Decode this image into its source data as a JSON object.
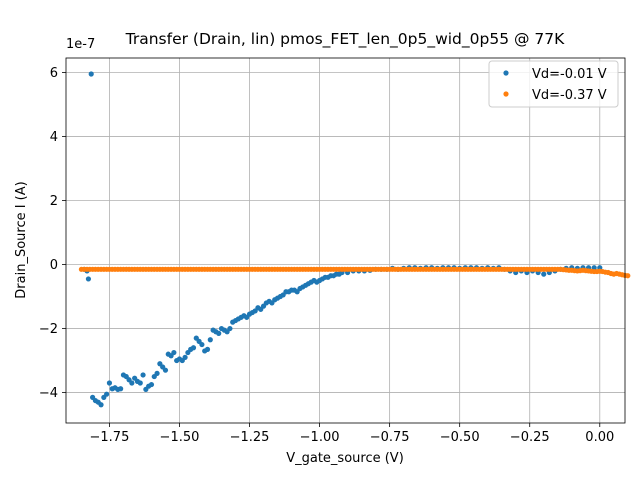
{
  "chart_data": {
    "type": "scatter",
    "title": "Transfer (Drain, lin) pmos_FET_len_0p5_wid_0p55 @ 77K",
    "xlabel": "V_gate_source (V)",
    "ylabel": "Drain_Source I (A)",
    "y_offset_label": "1e-7",
    "y_scale": 1e-07,
    "xlim": [
      -1.905,
      0.09
    ],
    "ylim": [
      -4.95,
      6.45
    ],
    "x_ticks": [
      -1.75,
      -1.5,
      -1.25,
      -1.0,
      -0.75,
      -0.5,
      -0.25,
      0.0
    ],
    "x_tick_labels": [
      "−1.75",
      "−1.50",
      "−1.25",
      "−1.00",
      "−0.75",
      "−0.50",
      "−0.25",
      "0.00"
    ],
    "y_ticks": [
      -4,
      -2,
      0,
      2,
      4,
      6
    ],
    "y_tick_labels": [
      "−4",
      "−2",
      "0",
      "2",
      "4",
      "6"
    ],
    "grid": true,
    "legend_position": "top-right",
    "series": [
      {
        "name": "Vd=-0.01 V",
        "color": "#1f77b4",
        "points": [
          [
            -1.84,
            -0.15
          ],
          [
            -1.83,
            -0.2
          ],
          [
            -1.825,
            -0.45
          ],
          [
            -1.815,
            5.95
          ],
          [
            -1.81,
            -4.15
          ],
          [
            -1.8,
            -4.25
          ],
          [
            -1.79,
            -4.3
          ],
          [
            -1.78,
            -4.38
          ],
          [
            -1.77,
            -4.15
          ],
          [
            -1.76,
            -4.05
          ],
          [
            -1.75,
            -3.7
          ],
          [
            -1.74,
            -3.88
          ],
          [
            -1.73,
            -3.85
          ],
          [
            -1.72,
            -3.9
          ],
          [
            -1.71,
            -3.88
          ],
          [
            -1.7,
            -3.45
          ],
          [
            -1.69,
            -3.5
          ],
          [
            -1.68,
            -3.6
          ],
          [
            -1.67,
            -3.7
          ],
          [
            -1.66,
            -3.55
          ],
          [
            -1.65,
            -3.65
          ],
          [
            -1.64,
            -3.7
          ],
          [
            -1.63,
            -3.45
          ],
          [
            -1.62,
            -3.9
          ],
          [
            -1.61,
            -3.8
          ],
          [
            -1.6,
            -3.75
          ],
          [
            -1.59,
            -3.5
          ],
          [
            -1.58,
            -3.4
          ],
          [
            -1.57,
            -3.1
          ],
          [
            -1.56,
            -3.2
          ],
          [
            -1.55,
            -3.3
          ],
          [
            -1.54,
            -2.8
          ],
          [
            -1.53,
            -2.85
          ],
          [
            -1.52,
            -2.75
          ],
          [
            -1.51,
            -3.0
          ],
          [
            -1.5,
            -2.95
          ],
          [
            -1.49,
            -3.0
          ],
          [
            -1.48,
            -2.9
          ],
          [
            -1.47,
            -2.75
          ],
          [
            -1.46,
            -2.65
          ],
          [
            -1.45,
            -2.6
          ],
          [
            -1.44,
            -2.3
          ],
          [
            -1.43,
            -2.4
          ],
          [
            -1.42,
            -2.5
          ],
          [
            -1.41,
            -2.7
          ],
          [
            -1.4,
            -2.65
          ],
          [
            -1.39,
            -2.35
          ],
          [
            -1.38,
            -2.05
          ],
          [
            -1.37,
            -2.1
          ],
          [
            -1.36,
            -2.15
          ],
          [
            -1.35,
            -2.0
          ],
          [
            -1.34,
            -2.05
          ],
          [
            -1.33,
            -2.1
          ],
          [
            -1.32,
            -2.0
          ],
          [
            -1.31,
            -1.8
          ],
          [
            -1.3,
            -1.75
          ],
          [
            -1.29,
            -1.7
          ],
          [
            -1.28,
            -1.65
          ],
          [
            -1.27,
            -1.6
          ],
          [
            -1.26,
            -1.65
          ],
          [
            -1.25,
            -1.55
          ],
          [
            -1.24,
            -1.5
          ],
          [
            -1.23,
            -1.45
          ],
          [
            -1.22,
            -1.35
          ],
          [
            -1.21,
            -1.4
          ],
          [
            -1.2,
            -1.3
          ],
          [
            -1.19,
            -1.2
          ],
          [
            -1.18,
            -1.15
          ],
          [
            -1.17,
            -1.2
          ],
          [
            -1.16,
            -1.1
          ],
          [
            -1.15,
            -1.05
          ],
          [
            -1.14,
            -1.0
          ],
          [
            -1.13,
            -0.95
          ],
          [
            -1.12,
            -0.85
          ],
          [
            -1.11,
            -0.85
          ],
          [
            -1.1,
            -0.8
          ],
          [
            -1.09,
            -0.8
          ],
          [
            -1.08,
            -0.85
          ],
          [
            -1.07,
            -0.75
          ],
          [
            -1.06,
            -0.7
          ],
          [
            -1.05,
            -0.65
          ],
          [
            -1.04,
            -0.6
          ],
          [
            -1.03,
            -0.55
          ],
          [
            -1.02,
            -0.5
          ],
          [
            -1.01,
            -0.55
          ],
          [
            -1.0,
            -0.5
          ],
          [
            -0.99,
            -0.45
          ],
          [
            -0.98,
            -0.4
          ],
          [
            -0.97,
            -0.4
          ],
          [
            -0.96,
            -0.35
          ],
          [
            -0.95,
            -0.35
          ],
          [
            -0.94,
            -0.3
          ],
          [
            -0.93,
            -0.3
          ],
          [
            -0.92,
            -0.25
          ],
          [
            -0.9,
            -0.25
          ],
          [
            -0.88,
            -0.2
          ],
          [
            -0.86,
            -0.2
          ],
          [
            -0.84,
            -0.2
          ],
          [
            -0.82,
            -0.18
          ],
          [
            -0.8,
            -0.15
          ],
          [
            -0.78,
            -0.15
          ],
          [
            -0.76,
            -0.15
          ],
          [
            -0.74,
            -0.12
          ],
          [
            -0.72,
            -0.15
          ],
          [
            -0.7,
            -0.12
          ],
          [
            -0.68,
            -0.1
          ],
          [
            -0.66,
            -0.1
          ],
          [
            -0.64,
            -0.12
          ],
          [
            -0.62,
            -0.1
          ],
          [
            -0.6,
            -0.1
          ],
          [
            -0.58,
            -0.12
          ],
          [
            -0.56,
            -0.1
          ],
          [
            -0.54,
            -0.1
          ],
          [
            -0.52,
            -0.1
          ],
          [
            -0.5,
            -0.12
          ],
          [
            -0.48,
            -0.1
          ],
          [
            -0.46,
            -0.1
          ],
          [
            -0.44,
            -0.1
          ],
          [
            -0.42,
            -0.12
          ],
          [
            -0.4,
            -0.1
          ],
          [
            -0.38,
            -0.12
          ],
          [
            -0.36,
            -0.1
          ],
          [
            -0.34,
            -0.15
          ],
          [
            -0.32,
            -0.2
          ],
          [
            -0.3,
            -0.25
          ],
          [
            -0.28,
            -0.2
          ],
          [
            -0.26,
            -0.25
          ],
          [
            -0.24,
            -0.2
          ],
          [
            -0.22,
            -0.25
          ],
          [
            -0.2,
            -0.3
          ],
          [
            -0.18,
            -0.25
          ],
          [
            -0.16,
            -0.2
          ],
          [
            -0.14,
            -0.15
          ],
          [
            -0.12,
            -0.12
          ],
          [
            -0.1,
            -0.1
          ],
          [
            -0.08,
            -0.12
          ],
          [
            -0.06,
            -0.1
          ],
          [
            -0.04,
            -0.1
          ],
          [
            -0.02,
            -0.1
          ],
          [
            0.0,
            -0.1
          ]
        ]
      },
      {
        "name": "Vd=-0.37 V",
        "color": "#ff7f0e",
        "x_start": -1.85,
        "x_end": 0.0,
        "x_step": 0.01,
        "y_values": [
          -0.15,
          -0.15,
          -0.15,
          -0.15,
          -0.15,
          -0.15,
          -0.15,
          -0.15,
          -0.15,
          -0.15,
          -0.15,
          -0.15,
          -0.15,
          -0.15,
          -0.15,
          -0.15,
          -0.15,
          -0.15,
          -0.15,
          -0.15,
          -0.15,
          -0.15,
          -0.15,
          -0.15,
          -0.15,
          -0.15,
          -0.15,
          -0.15,
          -0.15,
          -0.15,
          -0.15,
          -0.15,
          -0.15,
          -0.15,
          -0.15,
          -0.15,
          -0.15,
          -0.15,
          -0.15,
          -0.15,
          -0.15,
          -0.15,
          -0.15,
          -0.15,
          -0.15,
          -0.15,
          -0.15,
          -0.15,
          -0.15,
          -0.15,
          -0.15,
          -0.15,
          -0.15,
          -0.15,
          -0.15,
          -0.15,
          -0.15,
          -0.15,
          -0.15,
          -0.15,
          -0.15,
          -0.15,
          -0.15,
          -0.15,
          -0.15,
          -0.15,
          -0.15,
          -0.15,
          -0.15,
          -0.15,
          -0.15,
          -0.15,
          -0.15,
          -0.15,
          -0.15,
          -0.15,
          -0.15,
          -0.15,
          -0.15,
          -0.15,
          -0.15,
          -0.15,
          -0.15,
          -0.15,
          -0.15,
          -0.15,
          -0.15,
          -0.15,
          -0.15,
          -0.15,
          -0.15,
          -0.15,
          -0.15,
          -0.15,
          -0.15,
          -0.15,
          -0.15,
          -0.15,
          -0.15,
          -0.15,
          -0.15,
          -0.15,
          -0.15,
          -0.15,
          -0.15,
          -0.15,
          -0.15,
          -0.15,
          -0.15,
          -0.15,
          -0.15,
          -0.15,
          -0.15,
          -0.15,
          -0.15,
          -0.15,
          -0.15,
          -0.15,
          -0.15,
          -0.15,
          -0.15,
          -0.15,
          -0.15,
          -0.15,
          -0.15,
          -0.15,
          -0.15,
          -0.15,
          -0.15,
          -0.15,
          -0.15,
          -0.15,
          -0.15,
          -0.15,
          -0.15,
          -0.15,
          -0.15,
          -0.15,
          -0.15,
          -0.15,
          -0.15,
          -0.15,
          -0.15,
          -0.15,
          -0.15,
          -0.15,
          -0.15,
          -0.15,
          -0.15,
          -0.15,
          -0.15,
          -0.15,
          -0.15,
          -0.15,
          -0.15,
          -0.15,
          -0.15,
          -0.15,
          -0.15,
          -0.15,
          -0.15,
          -0.15,
          -0.15,
          -0.15,
          -0.15,
          -0.15,
          -0.15,
          -0.15,
          -0.15,
          -0.15,
          -0.15,
          -0.15,
          -0.16,
          -0.17,
          -0.18,
          -0.18,
          -0.19,
          -0.2,
          -0.19,
          -0.18,
          -0.19,
          -0.2,
          -0.21,
          -0.22,
          -0.22,
          -0.21,
          -0.22,
          -0.24,
          -0.25,
          -0.28,
          -0.3,
          -0.28,
          -0.3,
          -0.32,
          -0.34,
          -0.35
        ]
      }
    ]
  }
}
